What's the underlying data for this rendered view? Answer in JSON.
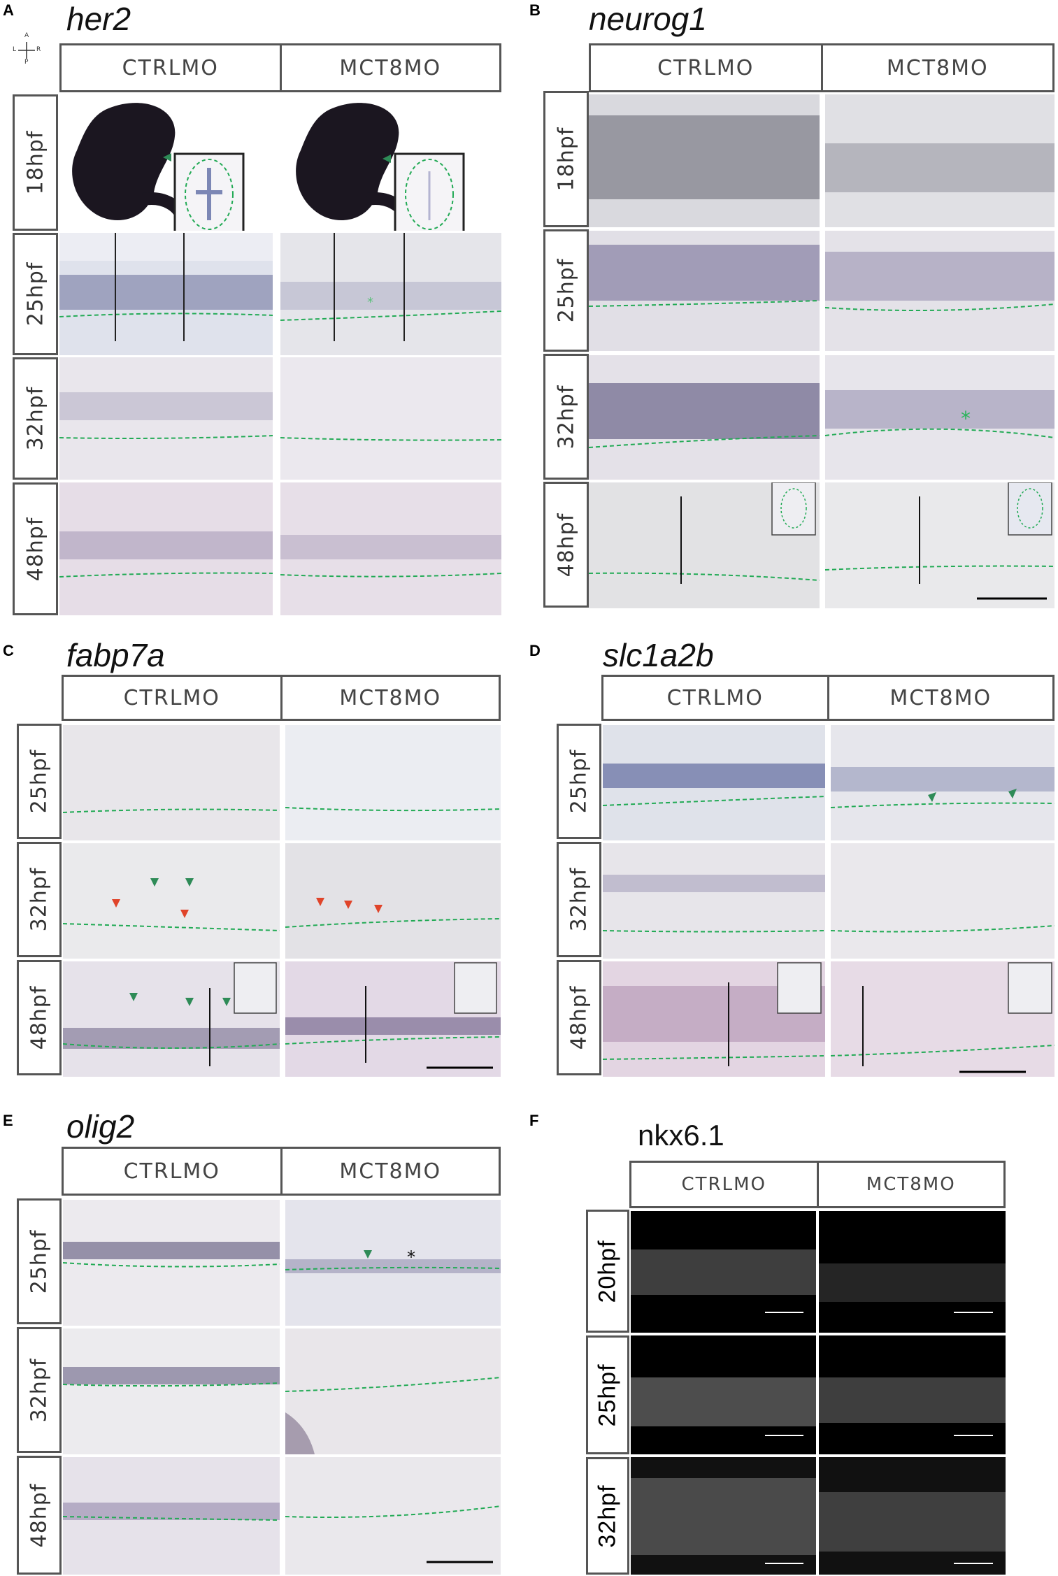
{
  "columns": [
    "CTRLMO",
    "MCT8MO"
  ],
  "panels": {
    "A": {
      "letter": "A",
      "gene": "her2",
      "rows": [
        "18hpf",
        "25hpf",
        "32hpf",
        "48hpf"
      ]
    },
    "B": {
      "letter": "B",
      "gene": "neurog1",
      "rows": [
        "18hpf",
        "25hpf",
        "32hpf",
        "48hpf"
      ]
    },
    "C": {
      "letter": "C",
      "gene": "fabp7a",
      "rows": [
        "25hpf",
        "32hpf",
        "48hpf"
      ]
    },
    "D": {
      "letter": "D",
      "gene": "slc1a2b",
      "rows": [
        "25hpf",
        "32hpf",
        "48hpf"
      ]
    },
    "E": {
      "letter": "E",
      "gene": "olig2",
      "rows": [
        "25hpf",
        "32hpf",
        "48hpf"
      ]
    },
    "F": {
      "letter": "F",
      "gene": "nkx6.1",
      "rows": [
        "20hpf",
        "25hpf",
        "32hpf"
      ]
    }
  },
  "compass": {
    "a": "A",
    "p": "P",
    "l": "L",
    "r": "R"
  },
  "colors": {
    "outline": "#22aa55",
    "arrow_green": "#2e8b57",
    "arrow_red": "#e0442a",
    "stain": "#4a3d6e"
  }
}
